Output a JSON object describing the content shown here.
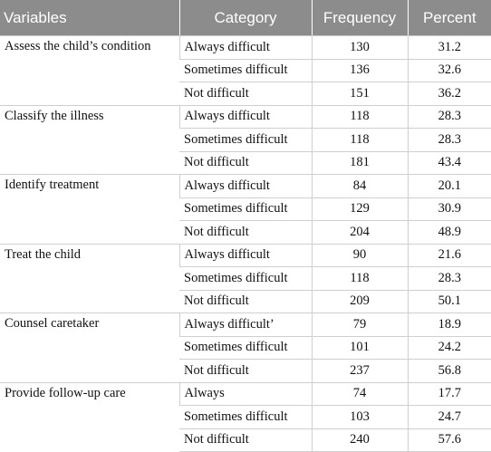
{
  "headers": {
    "variables": "Variables",
    "category": "Category",
    "frequency": "Frequency",
    "percent": "Percent"
  },
  "groups": [
    {
      "variable": "Assess the child’s condition",
      "rows": [
        {
          "category": "Always difficult",
          "frequency": "130",
          "percent": "31.2"
        },
        {
          "category": "Sometimes difficult",
          "frequency": "136",
          "percent": "32.6"
        },
        {
          "category": "Not difficult",
          "frequency": "151",
          "percent": "36.2"
        }
      ]
    },
    {
      "variable": "Classify the illness",
      "rows": [
        {
          "category": "Always difficult",
          "frequency": "118",
          "percent": "28.3"
        },
        {
          "category": "Sometimes difficult",
          "frequency": "118",
          "percent": "28.3"
        },
        {
          "category": "Not difficult",
          "frequency": "181",
          "percent": "43.4"
        }
      ]
    },
    {
      "variable": "Identify treatment",
      "rows": [
        {
          "category": "Always difficult",
          "frequency": "84",
          "percent": "20.1"
        },
        {
          "category": "Sometimes difficult",
          "frequency": "129",
          "percent": "30.9"
        },
        {
          "category": "Not difficult",
          "frequency": "204",
          "percent": "48.9"
        }
      ]
    },
    {
      "variable": "Treat the child",
      "rows": [
        {
          "category": "Always difficult",
          "frequency": "90",
          "percent": "21.6"
        },
        {
          "category": "Sometimes difficult",
          "frequency": "118",
          "percent": "28.3"
        },
        {
          "category": "Not difficult",
          "frequency": "209",
          "percent": "50.1"
        }
      ]
    },
    {
      "variable": "Counsel caretaker",
      "rows": [
        {
          "category": "Always difficult’",
          "frequency": "79",
          "percent": "18.9"
        },
        {
          "category": "Sometimes difficult",
          "frequency": "101",
          "percent": "24.2"
        },
        {
          "category": "Not difficult",
          "frequency": "237",
          "percent": "56.8"
        }
      ]
    },
    {
      "variable": "Provide follow-up care",
      "rows": [
        {
          "category": "Always",
          "frequency": "74",
          "percent": "17.7"
        },
        {
          "category": "Sometimes difficult",
          "frequency": "103",
          "percent": "24.7"
        },
        {
          "category": "Not difficult",
          "frequency": "240",
          "percent": "57.6"
        }
      ]
    }
  ]
}
